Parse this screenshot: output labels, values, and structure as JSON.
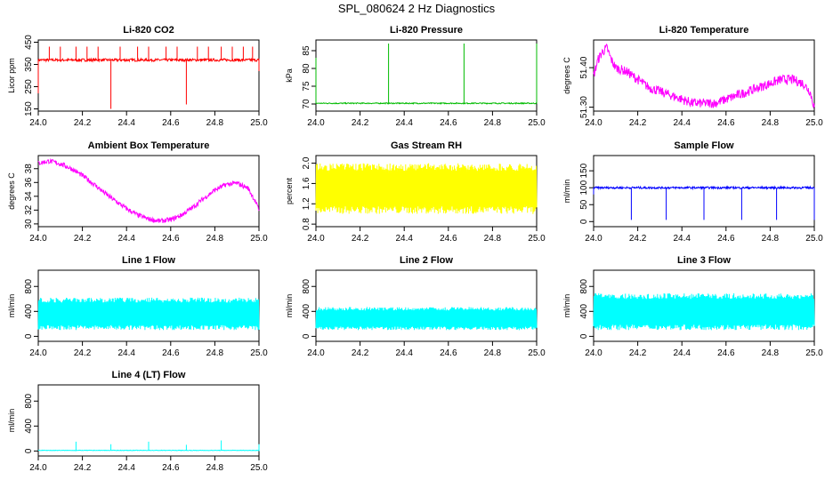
{
  "figure_title": "SPL_080624  2 Hz Diagnostics",
  "chart_data": [
    {
      "type": "line",
      "title": "Li-820 CO2",
      "ylabel": "Licor ppm",
      "xlim": [
        24.0,
        25.0
      ],
      "ylim": [
        140,
        460
      ],
      "xticks": [
        "24.0",
        "24.2",
        "24.4",
        "24.6",
        "24.8",
        "25.0"
      ],
      "yticks": [
        "150",
        "250",
        "350",
        "450"
      ],
      "color": "#ff0000",
      "series": [
        {
          "baseline": 370,
          "noise": 6,
          "spikes": [
            [
              24.0,
              220
            ],
            [
              24.05,
              430
            ],
            [
              24.1,
              430
            ],
            [
              24.17,
              430
            ],
            [
              24.22,
              430
            ],
            [
              24.27,
              430
            ],
            [
              24.33,
              150
            ],
            [
              24.37,
              430
            ],
            [
              24.45,
              430
            ],
            [
              24.5,
              430
            ],
            [
              24.58,
              430
            ],
            [
              24.63,
              430
            ],
            [
              24.67,
              170
            ],
            [
              24.72,
              430
            ],
            [
              24.77,
              430
            ],
            [
              24.83,
              430
            ],
            [
              24.88,
              430
            ],
            [
              24.93,
              430
            ],
            [
              24.97,
              430
            ],
            [
              25.0,
              320
            ]
          ]
        }
      ]
    },
    {
      "type": "line",
      "title": "Li-820 Pressure",
      "ylabel": "kPa",
      "xlim": [
        24.0,
        25.0
      ],
      "ylim": [
        68,
        88
      ],
      "xticks": [
        "24.0",
        "24.2",
        "24.4",
        "24.6",
        "24.8",
        "25.0"
      ],
      "yticks": [
        "70",
        "75",
        "80",
        "85"
      ],
      "color": "#00bb00",
      "series": [
        {
          "baseline": 70.2,
          "noise": 0.15,
          "spikes": [
            [
              24.0,
              83
            ],
            [
              24.33,
              87
            ],
            [
              24.67,
              87
            ],
            [
              25.0,
              87
            ]
          ]
        }
      ]
    },
    {
      "type": "line",
      "title": "Li-820 Temperature",
      "ylabel": "degrees C",
      "xlim": [
        24.0,
        25.0
      ],
      "ylim": [
        51.29,
        51.47
      ],
      "xticks": [
        "24.0",
        "24.2",
        "24.4",
        "24.6",
        "24.8",
        "25.0"
      ],
      "yticks": [
        "51.30",
        "51.40"
      ],
      "color": "#ff00ff",
      "series": [
        {
          "x": [
            24.0,
            24.02,
            24.04,
            24.06,
            24.08,
            24.1,
            24.15,
            24.2,
            24.25,
            24.3,
            24.35,
            24.4,
            24.45,
            24.5,
            24.55,
            24.6,
            24.65,
            24.7,
            24.75,
            24.8,
            24.85,
            24.9,
            24.95,
            24.98,
            25.0
          ],
          "y": [
            51.38,
            51.42,
            51.44,
            51.45,
            51.42,
            51.4,
            51.39,
            51.37,
            51.35,
            51.34,
            51.33,
            51.32,
            51.31,
            51.31,
            51.31,
            51.32,
            51.33,
            51.34,
            51.35,
            51.36,
            51.37,
            51.37,
            51.36,
            51.34,
            51.3
          ],
          "noise": 0.012
        }
      ]
    },
    {
      "type": "line",
      "title": "Ambient Box Temperature",
      "ylabel": "degrees C",
      "xlim": [
        24.0,
        25.0
      ],
      "ylim": [
        29.6,
        39.9
      ],
      "xticks": [
        "24.0",
        "24.2",
        "24.4",
        "24.6",
        "24.8",
        "25.0"
      ],
      "yticks": [
        "30",
        "32",
        "34",
        "36",
        "38"
      ],
      "color": "#ff00ff",
      "series": [
        {
          "x": [
            24.0,
            24.05,
            24.1,
            24.15,
            24.2,
            24.25,
            24.3,
            24.35,
            24.4,
            24.45,
            24.5,
            24.55,
            24.6,
            24.65,
            24.7,
            24.75,
            24.8,
            24.85,
            24.9,
            24.95,
            24.98,
            25.0
          ],
          "y": [
            38.8,
            39.1,
            38.7,
            38.0,
            37.0,
            35.8,
            34.5,
            33.3,
            32.2,
            31.3,
            30.7,
            30.4,
            30.6,
            31.3,
            32.4,
            33.7,
            34.9,
            35.7,
            35.9,
            35.2,
            33.5,
            32.0
          ],
          "noise": 0.35
        }
      ]
    },
    {
      "type": "line",
      "title": "Gas Stream RH",
      "ylabel": "percent",
      "xlim": [
        24.0,
        25.0
      ],
      "ylim": [
        0.75,
        2.15
      ],
      "xticks": [
        "24.0",
        "24.2",
        "24.4",
        "24.6",
        "24.8",
        "25.0"
      ],
      "yticks": [
        "0.8",
        "1.2",
        "1.6",
        "2.0"
      ],
      "color": "#ffff00",
      "series": [
        {
          "baseline": 1.5,
          "band": [
            1.0,
            2.0
          ],
          "dense": true
        }
      ]
    },
    {
      "type": "line",
      "title": "Sample Flow",
      "ylabel": "ml/min",
      "xlim": [
        24.0,
        25.0
      ],
      "ylim": [
        -15,
        195
      ],
      "xticks": [
        "24.0",
        "24.2",
        "24.4",
        "24.6",
        "24.8",
        "25.0"
      ],
      "yticks": [
        "0",
        "50",
        "100",
        "150"
      ],
      "color": "#0000ff",
      "series": [
        {
          "baseline": 100,
          "noise": 3,
          "spikes": [
            [
              24.0,
              80
            ],
            [
              24.17,
              5
            ],
            [
              24.33,
              5
            ],
            [
              24.5,
              5
            ],
            [
              24.67,
              5
            ],
            [
              24.83,
              5
            ],
            [
              25.0,
              5
            ]
          ]
        }
      ]
    },
    {
      "type": "line",
      "title": "Line 1 Flow",
      "ylabel": "ml/min",
      "xlim": [
        24.0,
        25.0
      ],
      "ylim": [
        -80,
        1060
      ],
      "xticks": [
        "24.0",
        "24.2",
        "24.4",
        "24.6",
        "24.8",
        "25.0"
      ],
      "yticks": [
        "0",
        "400",
        "800"
      ],
      "color": "#00ffff",
      "series": [
        {
          "band": [
            100,
            620
          ],
          "dense": true
        }
      ]
    },
    {
      "type": "line",
      "title": "Line 2 Flow",
      "ylabel": "ml/min",
      "xlim": [
        24.0,
        25.0
      ],
      "ylim": [
        -80,
        1060
      ],
      "xticks": [
        "24.0",
        "24.2",
        "24.4",
        "24.6",
        "24.8",
        "25.0"
      ],
      "yticks": [
        "0",
        "400",
        "800"
      ],
      "color": "#00ffff",
      "series": [
        {
          "band": [
            100,
            470
          ],
          "dense": true
        }
      ]
    },
    {
      "type": "line",
      "title": "Line 3 Flow",
      "ylabel": "ml/min",
      "xlim": [
        24.0,
        25.0
      ],
      "ylim": [
        -80,
        1060
      ],
      "xticks": [
        "24.0",
        "24.2",
        "24.4",
        "24.6",
        "24.8",
        "25.0"
      ],
      "yticks": [
        "0",
        "400",
        "800"
      ],
      "color": "#00ffff",
      "series": [
        {
          "band": [
            100,
            690
          ],
          "dense": true
        }
      ]
    },
    {
      "type": "line",
      "title": "Line 4 (LT) Flow",
      "ylabel": "ml/min",
      "xlim": [
        24.0,
        25.0
      ],
      "ylim": [
        -80,
        1060
      ],
      "xticks": [
        "24.0",
        "24.2",
        "24.4",
        "24.6",
        "24.8",
        "25.0"
      ],
      "yticks": [
        "0",
        "400",
        "800"
      ],
      "color": "#00ffff",
      "series": [
        {
          "baseline": 10,
          "noise": 4,
          "spikes": [
            [
              24.17,
              150
            ],
            [
              24.33,
              110
            ],
            [
              24.5,
              150
            ],
            [
              24.67,
              100
            ],
            [
              24.83,
              170
            ],
            [
              25.0,
              110
            ]
          ]
        }
      ]
    }
  ]
}
